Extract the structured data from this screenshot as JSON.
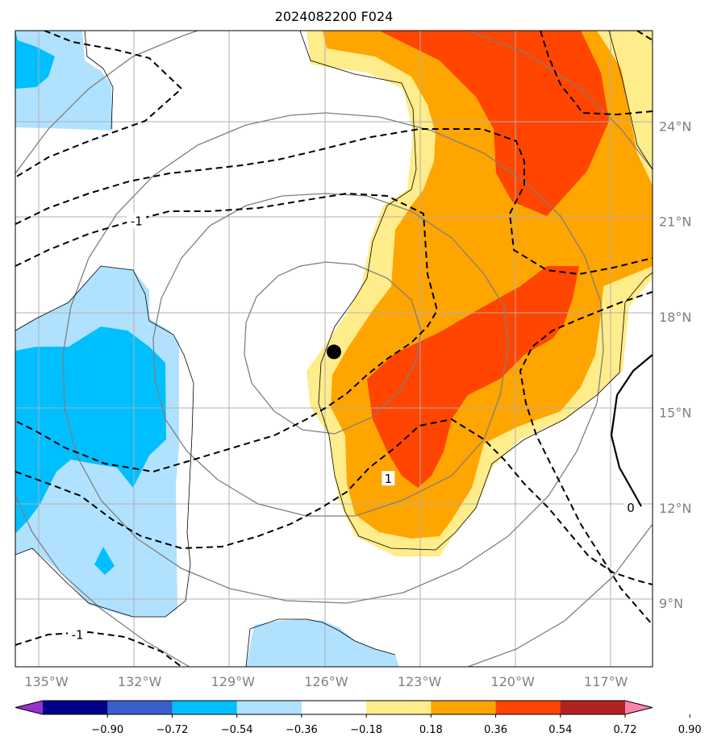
{
  "title": "2024082200 F024",
  "map": {
    "lon_range": [
      -136,
      -115.5
    ],
    "lat_range": [
      7,
      27
    ],
    "x_ticks": [
      {
        "lon": -135,
        "label": "135°W"
      },
      {
        "lon": -132,
        "label": "132°W"
      },
      {
        "lon": -129,
        "label": "129°W"
      },
      {
        "lon": -126,
        "label": "126°W"
      },
      {
        "lon": -123,
        "label": "123°W"
      },
      {
        "lon": -120,
        "label": "120°W"
      },
      {
        "lon": -117,
        "label": "117°W"
      }
    ],
    "y_ticks": [
      {
        "lat": 24,
        "label": "24°N"
      },
      {
        "lat": 21,
        "label": "21°N"
      },
      {
        "lat": 18,
        "label": "18°N"
      },
      {
        "lat": 15,
        "label": "15°N"
      },
      {
        "lat": 12,
        "label": "12°N"
      },
      {
        "lat": 9,
        "label": "9°N"
      }
    ],
    "storm_center": {
      "lon": -125.75,
      "lat": 16.9
    },
    "contour_labels": [
      {
        "text": "-1",
        "lon": -132.1,
        "lat": 21.0
      },
      {
        "text": "1",
        "lon": -124.0,
        "lat": 12.9
      },
      {
        "text": "-1",
        "lon": -134.0,
        "lat": 8.0
      },
      {
        "text": "0",
        "lon": -116.2,
        "lat": 12.0
      }
    ]
  },
  "colorbar": {
    "colors": [
      "#9932cc",
      "#00008b",
      "#3a5fcd",
      "#00bfff",
      "#b0e2ff",
      "#ffffff",
      "#ffec8b",
      "#ffa500",
      "#ff4500",
      "#b22222",
      "#ff82ab"
    ],
    "labels": [
      "−0.90",
      "−0.72",
      "−0.54",
      "−0.36",
      "−0.18",
      "0.18",
      "0.36",
      "0.54",
      "0.72",
      "0.90"
    ]
  }
}
